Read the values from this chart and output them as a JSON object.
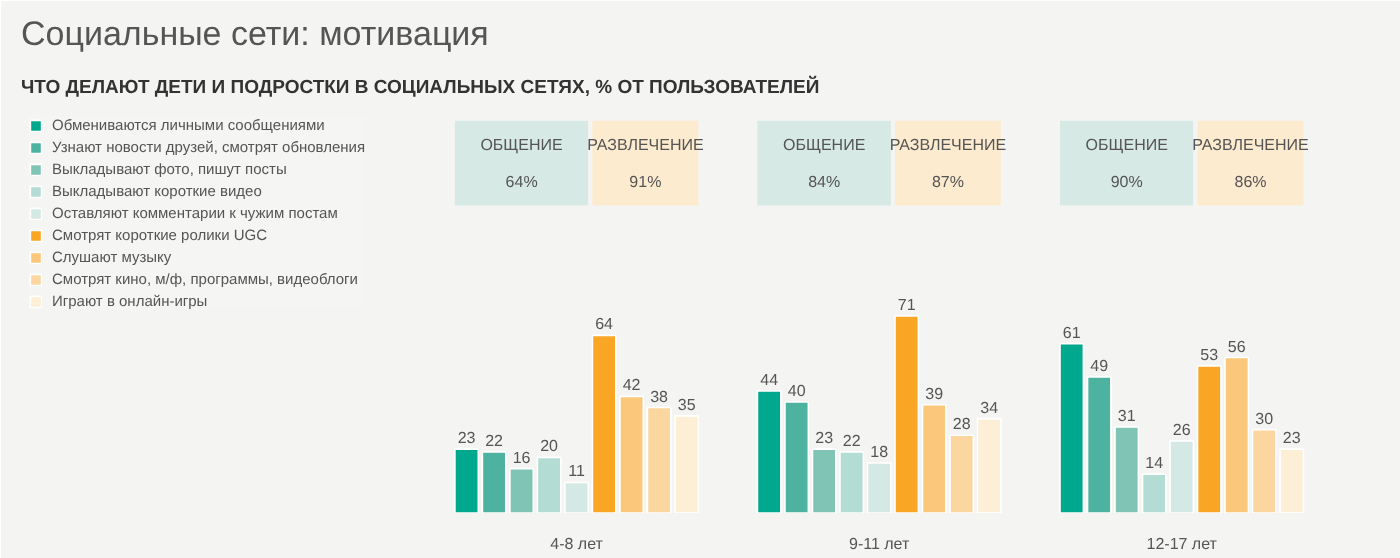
{
  "chart_data": {
    "type": "bar",
    "title": "Социальные сети: мотивация",
    "subtitle": "ЧТО ДЕЛАЮТ ДЕТИ И ПОДРОСТКИ В  СОЦИАЛЬНЫХ СЕТЯХ, % ОТ ПОЛЬЗОВАТЕЛЕЙ",
    "categories": [
      "4-8 лет",
      "9-11 лет",
      "12-17 лет"
    ],
    "series": [
      {
        "name": "Обмениваются личными сообщениями",
        "color": "#00a88e",
        "values": [
          23,
          44,
          61
        ]
      },
      {
        "name": "Узнают новости друзей, смотрят обновления",
        "color": "#4db3a0",
        "values": [
          22,
          40,
          49
        ]
      },
      {
        "name": "Выкладывают фото, пишут посты",
        "color": "#80c4b6",
        "values": [
          16,
          23,
          31
        ]
      },
      {
        "name": "Выкладывают короткие видео",
        "color": "#b3ddd4",
        "values": [
          20,
          22,
          14
        ]
      },
      {
        "name": "Оставляют комментарии к чужим постам",
        "color": "#d4e9e4",
        "values": [
          11,
          18,
          26
        ]
      },
      {
        "name": "Смотрят короткие ролики UGC",
        "color": "#f8a623",
        "values": [
          64,
          71,
          53
        ]
      },
      {
        "name": "Слушают музыку",
        "color": "#fbc77a",
        "values": [
          42,
          39,
          56
        ]
      },
      {
        "name": "Смотрят кино, м/ф, программы, видеоблоги",
        "color": "#fcd69f",
        "values": [
          38,
          28,
          30
        ]
      },
      {
        "name": "Играют в онлайн-игры",
        "color": "#fdeed6",
        "values": [
          35,
          34,
          23
        ]
      }
    ],
    "annotations": [
      "ОБЩЕНИЕ\n64%",
      "РАЗВЛЕЧЕНИЕ\n91%",
      "ОБЩЕНИЕ\n84%",
      "РАЗВЛЕЧЕНИЕ\n87%",
      "ОБЩЕНИЕ\n90%",
      "РАЗВЛЕЧЕНИЕ\n86%"
    ],
    "data_labels": true,
    "legend": "left"
  }
}
